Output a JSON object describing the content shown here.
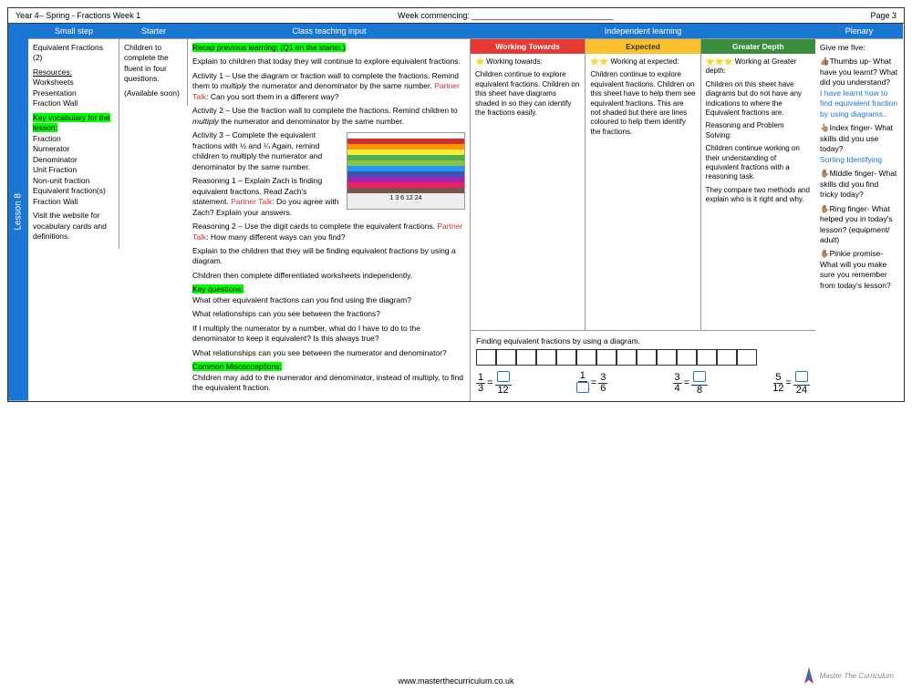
{
  "header": {
    "left": "Year 4– Spring - Fractions Week 1",
    "middle": "Week commencing: _______________________________",
    "right": "Page 3"
  },
  "lesson_tab": "Lesson 8",
  "columns": {
    "smallstep": {
      "header": "Small step"
    },
    "starter": {
      "header": "Starter"
    },
    "teaching": {
      "header": "Class teaching input"
    },
    "independent": {
      "header": "Independent learning"
    },
    "plenary": {
      "header": "Plenary"
    }
  },
  "smallstep": {
    "title": "Equivalent Fractions (2)",
    "resources_label": "Resources:",
    "resources": "Worksheets\nPresentation\nFraction Wall",
    "vocab_label": "Key vocabulary for the lesson:",
    "vocab": "Fraction\nNumerator\nDenominator\nUnit Fraction\nNon-unit fraction\nEquivalent fraction(s)\nFraction Wall",
    "visit": "Visit the website for vocabulary cards and definitions."
  },
  "starter": {
    "text": "Children to complete the fluent in four questions.",
    "avail": "(Available soon)"
  },
  "teaching": {
    "recap": "Recap previous learning: (Q1 on the starter.)",
    "intro": "Explain to children that today they will continue to explore equivalent fractions.",
    "act1a": "Activity 1 – Use the diagram or fraction wall to complete the fractions. Remind them to ",
    "act1b": " the numerator and denominator by the same number. ",
    "act1c": ": Can you sort them in a different way?",
    "act2a": "Activity 2 – Use the fraction wall to complete the fractions. Remind children to ",
    "act2b": " the numerator and denominator by the same number.",
    "act3": "Activity 3 – Complete the equivalent fractions with ½ and ¼ Again, remind children to multiply the numerator and denominator by the same number.",
    "reason1a": "Reasoning 1 – Explain Zach is finding equivalent fractions. Read Zach's statement. ",
    "reason1b": ": Do you agree with Zach? Explain your answers.",
    "reason2a": "Reasoning 2 – Use the digit cards to complete the equivalent fractions. ",
    "reason2b": ": How many different ways can you find?",
    "explain": "Explain to the children that they will be finding equivalent fractions by using a diagram.",
    "indep": "Children then complete differentiated worksheets independently.",
    "kq_label": "Key questions:",
    "kq1": "What other equivalent fractions can you find using the diagram?",
    "kq2": "What relationships can you see between the fractions?",
    "kq3": "If I multiply the numerator by a number, what do I have to do to the denominator to keep it equivalent? Is this always true?",
    "kq4": "What relationships can you see between the numerator and denominator?",
    "cm_label": "Common Misconceptions:",
    "cm": "Children may add to the numerator and denominator, instead of multiply, to find the equivalent fraction.",
    "multiply": "multiply",
    "partner": "Partner Talk",
    "fw_label": "1   3   6   12   24"
  },
  "independent": {
    "wt_header": "Working Towards",
    "exp_header": "Expected",
    "gd_header": "Greater Depth",
    "wt_title": "⭐ Working towards:",
    "wt_body": "Children continue to explore equivalent fractions. Children on this sheet have diagrams shaded in so they can identify the fractions easily.",
    "exp_title": "⭐⭐ Working at expected:",
    "exp_body": "Children continue to explore equivalent fractions. Children on this sheet have to help them see equivalent fractions. This are not shaded but there are lines coloured to help them identify the fractions.",
    "gd_title": "⭐⭐⭐ Working at Greater depth:",
    "gd_body1": "Children on this sheet have diagrams but do not have any indications to where the Equivalent fractions are.",
    "gd_body2": "Reasoning and Problem Solving:",
    "gd_body3": "Children continue working on their understanding of equivalent fractions with a reasoning task.",
    "gd_body4": "They compare two methods and explain who is it right and why.",
    "bottom_label": "Finding equivalent fractions by using a diagram.",
    "eq1": {
      "n1": "1",
      "d1": "3",
      "d2": "12"
    },
    "eq2": {
      "n1": "1",
      "n2": "3",
      "d2": "6"
    },
    "eq3": {
      "n1": "3",
      "d1": "4",
      "d2": "8"
    },
    "eq4": {
      "n1": "5",
      "d1": "12",
      "d2": "24"
    }
  },
  "plenary": {
    "intro": "Give me five:",
    "p1a": "👍🏽Thumbs up- What have you learnt? What did you understand?",
    "p1b": "I have learnt how to find equivalent fraction by using diagrams..",
    "p2a": "👆🏽Index finger- What skills did you use today?",
    "p2b": "Sorting Identifying",
    "p3": "✋🏽Middle finger- What skills did you find tricky today?",
    "p4": "✋🏽Ring finger- What helped you in today's lesson? (equipment/ adult)",
    "p5": "✋🏽Pinkie promise- What will you make sure you remember from today's lesson?"
  },
  "footer": "www.masterthecurriculum.co.uk",
  "logo_text": "Master The Curriculum",
  "fraction_wall_colors": [
    "#ffffff",
    "#d32f2f",
    "#ff9800",
    "#ffeb3b",
    "#4caf50",
    "#8bc34a",
    "#2196f3",
    "#3f51b5",
    "#9c27b0",
    "#e91e63",
    "#795548"
  ]
}
